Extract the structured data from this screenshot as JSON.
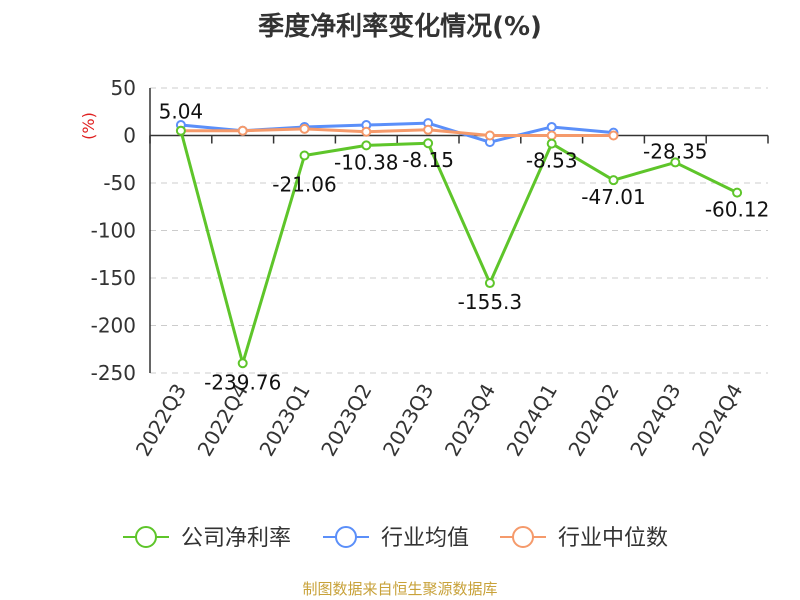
{
  "title": "季度净利率变化情况(%)",
  "source": "制图数据来自恒生聚源数据库",
  "chart_data": {
    "type": "line",
    "title": "季度净利率变化情况(%)",
    "ylabel": "(%)",
    "xlabel": "",
    "ylim": [
      -250,
      50
    ],
    "yticks": [
      50,
      0,
      -50,
      -100,
      -150,
      -200,
      -250
    ],
    "grid": true,
    "legend_position": "bottom",
    "categories": [
      "2022Q3",
      "2022Q4",
      "2023Q1",
      "2023Q2",
      "2023Q3",
      "2023Q4",
      "2024Q1",
      "2024Q2",
      "2024Q3",
      "2024Q4"
    ],
    "series": [
      {
        "name": "公司净利率",
        "color": "#5ec52a",
        "values": [
          5.04,
          -239.76,
          -21.06,
          -10.38,
          -8.15,
          -155.3,
          -8.53,
          -47.01,
          -28.35,
          -60.12
        ],
        "labels": [
          "5.04",
          "-239.76",
          "-21.06",
          "-10.38",
          "-8.15",
          "-155.3",
          "-8.53",
          "-47.01",
          "-28.35",
          "-60.12"
        ]
      },
      {
        "name": "行业均值",
        "color": "#5b8ff9",
        "values": [
          11,
          5,
          9,
          11,
          13,
          -7,
          9,
          3,
          null,
          null
        ]
      },
      {
        "name": "行业中位数",
        "color": "#f59a6b",
        "values": [
          5,
          5,
          7,
          4,
          6,
          0,
          0,
          0,
          null,
          null
        ]
      }
    ]
  }
}
